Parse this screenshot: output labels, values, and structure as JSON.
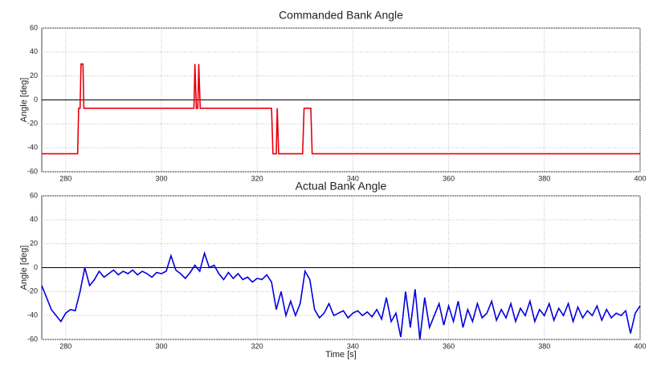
{
  "chart_data": [
    {
      "type": "line",
      "title": "Commanded Bank Angle",
      "y_label": "Angle [deg]",
      "xlim": [
        275,
        400
      ],
      "ylim": [
        -60,
        60
      ],
      "xticks": [
        280,
        300,
        320,
        340,
        360,
        380,
        400
      ],
      "yticks": [
        -60,
        -40,
        -20,
        0,
        20,
        40,
        60
      ],
      "grid": true,
      "x": [
        275,
        282.5,
        282.7,
        283,
        283.2,
        283.6,
        283.8,
        306.8,
        307,
        307.3,
        307.6,
        307.8,
        308.1,
        323,
        323.3,
        324,
        324.2,
        324.5,
        329.5,
        329.8,
        331.2,
        331.5,
        400
      ],
      "series": [
        {
          "name": "Commanded",
          "color": "#e8000b",
          "values": [
            -45,
            -45,
            -7,
            -7,
            30,
            30,
            -7,
            -7,
            30,
            -7,
            -7,
            30,
            -7,
            -7,
            -45,
            -45,
            -7,
            -45,
            -45,
            -7,
            -7,
            -45,
            -45
          ]
        }
      ]
    },
    {
      "type": "line",
      "title": "Actual Bank Angle",
      "y_label": "Angle [deg]",
      "x_label": "Time [s]",
      "xlim": [
        275,
        400
      ],
      "ylim": [
        -60,
        60
      ],
      "xticks": [
        280,
        300,
        320,
        340,
        360,
        380,
        400
      ],
      "yticks": [
        -60,
        -40,
        -20,
        0,
        20,
        40,
        60
      ],
      "grid": true,
      "x": [
        275,
        276,
        277,
        278,
        279,
        280,
        281,
        282,
        283,
        284,
        285,
        286,
        287,
        288,
        289,
        290,
        291,
        292,
        293,
        294,
        295,
        296,
        297,
        298,
        299,
        300,
        301,
        302,
        303,
        304,
        305,
        306,
        307,
        308,
        309,
        310,
        311,
        312,
        313,
        314,
        315,
        316,
        317,
        318,
        319,
        320,
        321,
        322,
        323,
        324,
        325,
        326,
        327,
        328,
        329,
        330,
        331,
        332,
        333,
        334,
        335,
        336,
        337,
        338,
        339,
        340,
        341,
        342,
        343,
        344,
        345,
        346,
        347,
        348,
        349,
        350,
        351,
        352,
        353,
        354,
        355,
        356,
        357,
        358,
        359,
        360,
        361,
        362,
        363,
        364,
        365,
        366,
        367,
        368,
        369,
        370,
        371,
        372,
        373,
        374,
        375,
        376,
        377,
        378,
        379,
        380,
        381,
        382,
        383,
        384,
        385,
        386,
        387,
        388,
        389,
        390,
        391,
        392,
        393,
        394,
        395,
        396,
        397,
        398,
        399,
        400
      ],
      "series": [
        {
          "name": "Actual",
          "color": "#0000e0",
          "values": [
            -15,
            -25,
            -35,
            -40,
            -45,
            -38,
            -35,
            -36,
            -20,
            0,
            -15,
            -10,
            -3,
            -8,
            -5,
            -2,
            -6,
            -3,
            -5,
            -2,
            -6,
            -3,
            -5,
            -8,
            -4,
            -5,
            -3,
            10,
            -2,
            -5,
            -9,
            -4,
            2,
            -3,
            12,
            0,
            2,
            -5,
            -10,
            -4,
            -9,
            -5,
            -10,
            -8,
            -12,
            -9,
            -10,
            -6,
            -12,
            -35,
            -20,
            -40,
            -28,
            -40,
            -30,
            -3,
            -10,
            -35,
            -42,
            -38,
            -30,
            -40,
            -38,
            -36,
            -42,
            -38,
            -36,
            -40,
            -37,
            -41,
            -35,
            -43,
            -25,
            -45,
            -38,
            -58,
            -20,
            -50,
            -18,
            -60,
            -25,
            -50,
            -40,
            -30,
            -48,
            -32,
            -45,
            -28,
            -50,
            -35,
            -45,
            -30,
            -42,
            -38,
            -28,
            -44,
            -35,
            -42,
            -30,
            -45,
            -34,
            -40,
            -28,
            -45,
            -35,
            -40,
            -30,
            -44,
            -34,
            -40,
            -30,
            -45,
            -33,
            -42,
            -36,
            -40,
            -32,
            -44,
            -35,
            -42,
            -38,
            -40,
            -36,
            -55,
            -38,
            -32
          ]
        }
      ]
    }
  ]
}
